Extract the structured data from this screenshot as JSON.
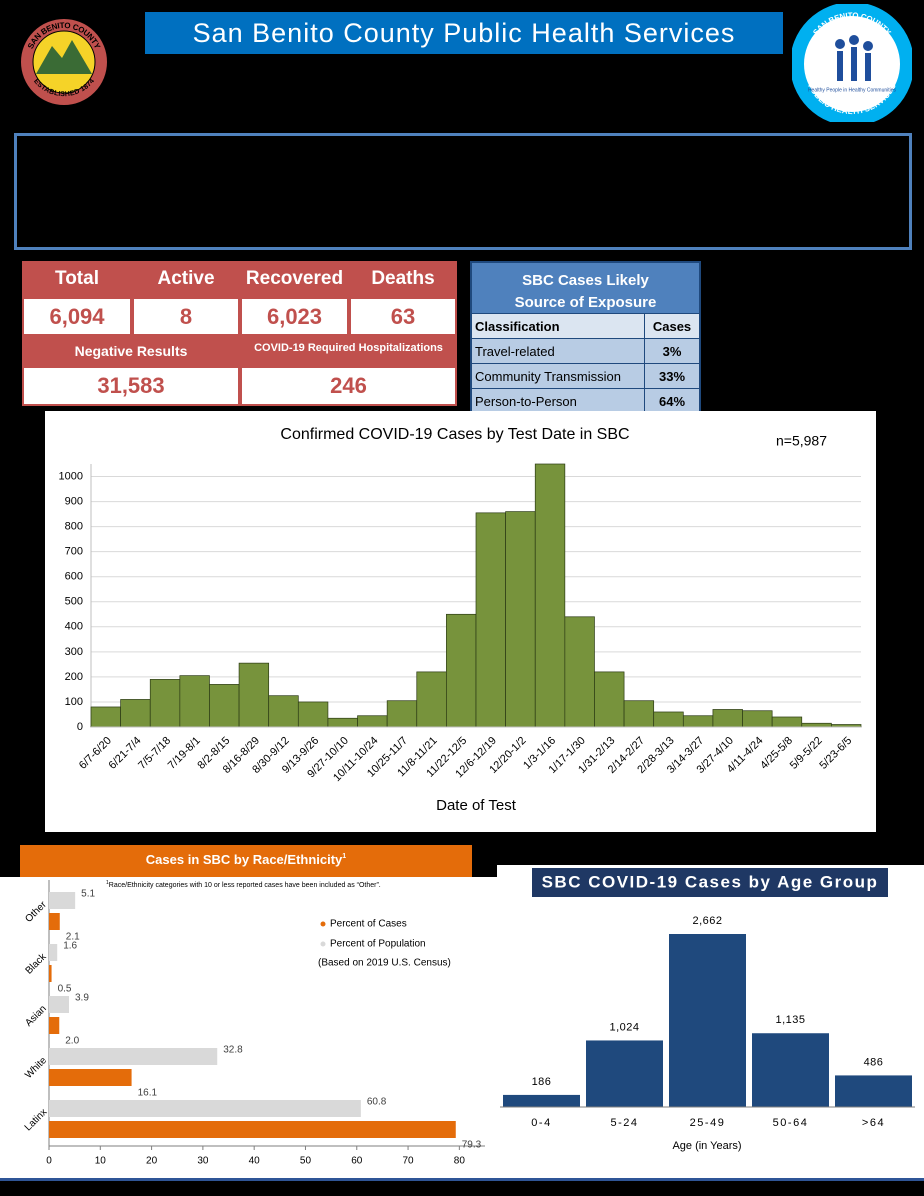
{
  "header": {
    "title": "San Benito County Public Health Services",
    "left_logo": {
      "top": "SAN BENITO COUNTY",
      "bottom": "ESTABLISHED 1874"
    },
    "right_logo": {
      "top": "SAN BENITO COUNTY",
      "bottom": "PUBLIC HEALTH SERVICES",
      "motto": "Healthy People in Healthy Communities"
    }
  },
  "stats": {
    "row1_headers": [
      "Total",
      "Active",
      "Recovered",
      "Deaths"
    ],
    "row1_values": [
      "6,094",
      "8",
      "6,023",
      "63"
    ],
    "row2_headers": [
      "Negative Results",
      "COVID-19 Required Hospitalizations"
    ],
    "row2_values": [
      "31,583",
      "246"
    ]
  },
  "exposure_table": {
    "title": "SBC Cases Likely Source of Exposure",
    "columns": [
      "Classification",
      "Cases"
    ],
    "rows": [
      [
        "Travel-related",
        "3%"
      ],
      [
        "Community Transmission",
        "33%"
      ],
      [
        "Person-to-Person",
        "64%"
      ]
    ]
  },
  "chart_data": [
    {
      "type": "bar",
      "title": "Confirmed COVID-19 Cases by Test Date in SBC",
      "annotation": "n=5,987",
      "xlabel": "Date of Test",
      "color": "#77933c",
      "grid": true,
      "categories": [
        "6/7-6/20",
        "6/21-7/4",
        "7/5-7/18",
        "7/19-8/1",
        "8/2-8/15",
        "8/16-8/29",
        "8/30-9/12",
        "9/13-9/26",
        "9/27-10/10",
        "10/11-10/24",
        "10/25-11/7",
        "11/8-11/21",
        "11/22-12/5",
        "12/6-12/19",
        "12/20-1/2",
        "1/3-1/16",
        "1/17-1/30",
        "1/31-2/13",
        "2/14-2/27",
        "2/28-3/13",
        "3/14-3/27",
        "3/27-4/10",
        "4/11-4/24",
        "4/25-5/8",
        "5/9-5/22",
        "5/23-6/5"
      ],
      "values": [
        80,
        110,
        190,
        205,
        170,
        255,
        125,
        100,
        35,
        45,
        105,
        220,
        450,
        855,
        860,
        1050,
        440,
        220,
        105,
        60,
        45,
        70,
        65,
        40,
        15,
        10
      ],
      "ylim": [
        0,
        1050
      ],
      "yticks": [
        0,
        100,
        200,
        300,
        400,
        500,
        600,
        700,
        800,
        900,
        1000
      ]
    },
    {
      "type": "barh",
      "title": "Cases in SBC by Race/Ethnicity",
      "title_marker": "1",
      "footnote_marker": "1",
      "footnote": "Race/Ethnicity categories with 10 or less reported cases have been included as “Other”.",
      "legend_note": "(Based on 2019 U.S. Census)",
      "categories": [
        "Other",
        "Black",
        "Asian",
        "White",
        "Latinx"
      ],
      "series": [
        {
          "name": "Percent of Cases",
          "color": "#e46c0a",
          "values": [
            2.1,
            0.5,
            2.0,
            16.1,
            79.3
          ],
          "value_labels": [
            "2.1",
            "0.5",
            "2.0",
            "16.1",
            "79.3"
          ]
        },
        {
          "name": "Percent of Population",
          "color": "#d9d9d9",
          "values": [
            5.1,
            1.6,
            3.9,
            32.8,
            60.8
          ],
          "value_labels": [
            "5.1",
            "1.6",
            "3.9",
            "32.8",
            "60.8"
          ]
        }
      ],
      "xlim": [
        0,
        85
      ],
      "xticks": [
        0,
        10,
        20,
        30,
        40,
        50,
        60,
        70,
        80
      ]
    },
    {
      "type": "bar",
      "title": "SBC COVID-19 Cases by Age Group",
      "xlabel": "Age (in Years)",
      "color": "#1f497d",
      "categories": [
        "0-4",
        "5-24",
        "25-49",
        "50-64",
        ">64"
      ],
      "values": [
        186,
        1024,
        2662,
        1135,
        486
      ],
      "value_labels": [
        "186",
        "1,024",
        "2,662",
        "1,135",
        "486"
      ]
    }
  ]
}
